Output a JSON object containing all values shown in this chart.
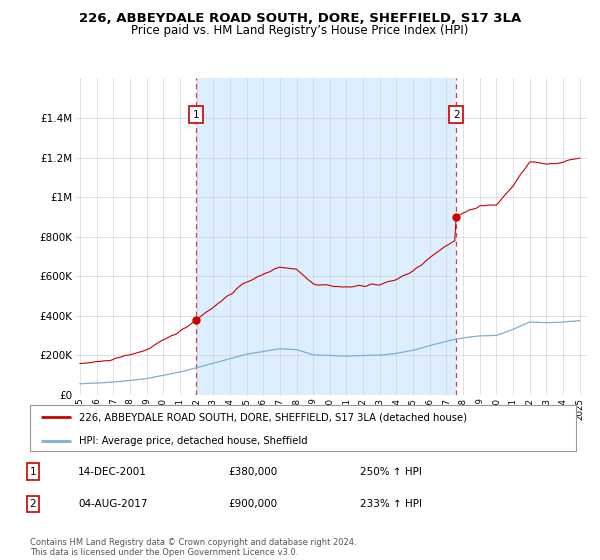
{
  "title": "226, ABBEYDALE ROAD SOUTH, DORE, SHEFFIELD, S17 3LA",
  "subtitle": "Price paid vs. HM Land Registry’s House Price Index (HPI)",
  "title_fontsize": 9.5,
  "subtitle_fontsize": 8.5,
  "ylim": [
    0,
    1600000
  ],
  "yticks": [
    0,
    200000,
    400000,
    600000,
    800000,
    1000000,
    1200000,
    1400000
  ],
  "ytick_labels": [
    "£0",
    "£200K",
    "£400K",
    "£600K",
    "£800K",
    "£1M",
    "£1.2M",
    "£1.4M"
  ],
  "xmin": 1994.7,
  "xmax": 2025.5,
  "sale1_year": 2001.96,
  "sale1_price": 380000,
  "sale1_label": "1",
  "sale2_year": 2017.58,
  "sale2_price": 900000,
  "sale2_label": "2",
  "line_color_red": "#cc0000",
  "line_color_blue": "#7ab0d4",
  "shade_color": "#ddeeff",
  "dashed_color": "#cc4444",
  "legend_label_red": "226, ABBEYDALE ROAD SOUTH, DORE, SHEFFIELD, S17 3LA (detached house)",
  "legend_label_blue": "HPI: Average price, detached house, Sheffield",
  "footer": "Contains HM Land Registry data © Crown copyright and database right 2024.\nThis data is licensed under the Open Government Licence v3.0.",
  "table_rows": [
    {
      "num": "1",
      "date": "14-DEC-2001",
      "price": "£380,000",
      "hpi": "250% ↑ HPI"
    },
    {
      "num": "2",
      "date": "04-AUG-2017",
      "price": "£900,000",
      "hpi": "233% ↑ HPI"
    }
  ],
  "background_color": "#ffffff",
  "grid_color": "#cccccc"
}
